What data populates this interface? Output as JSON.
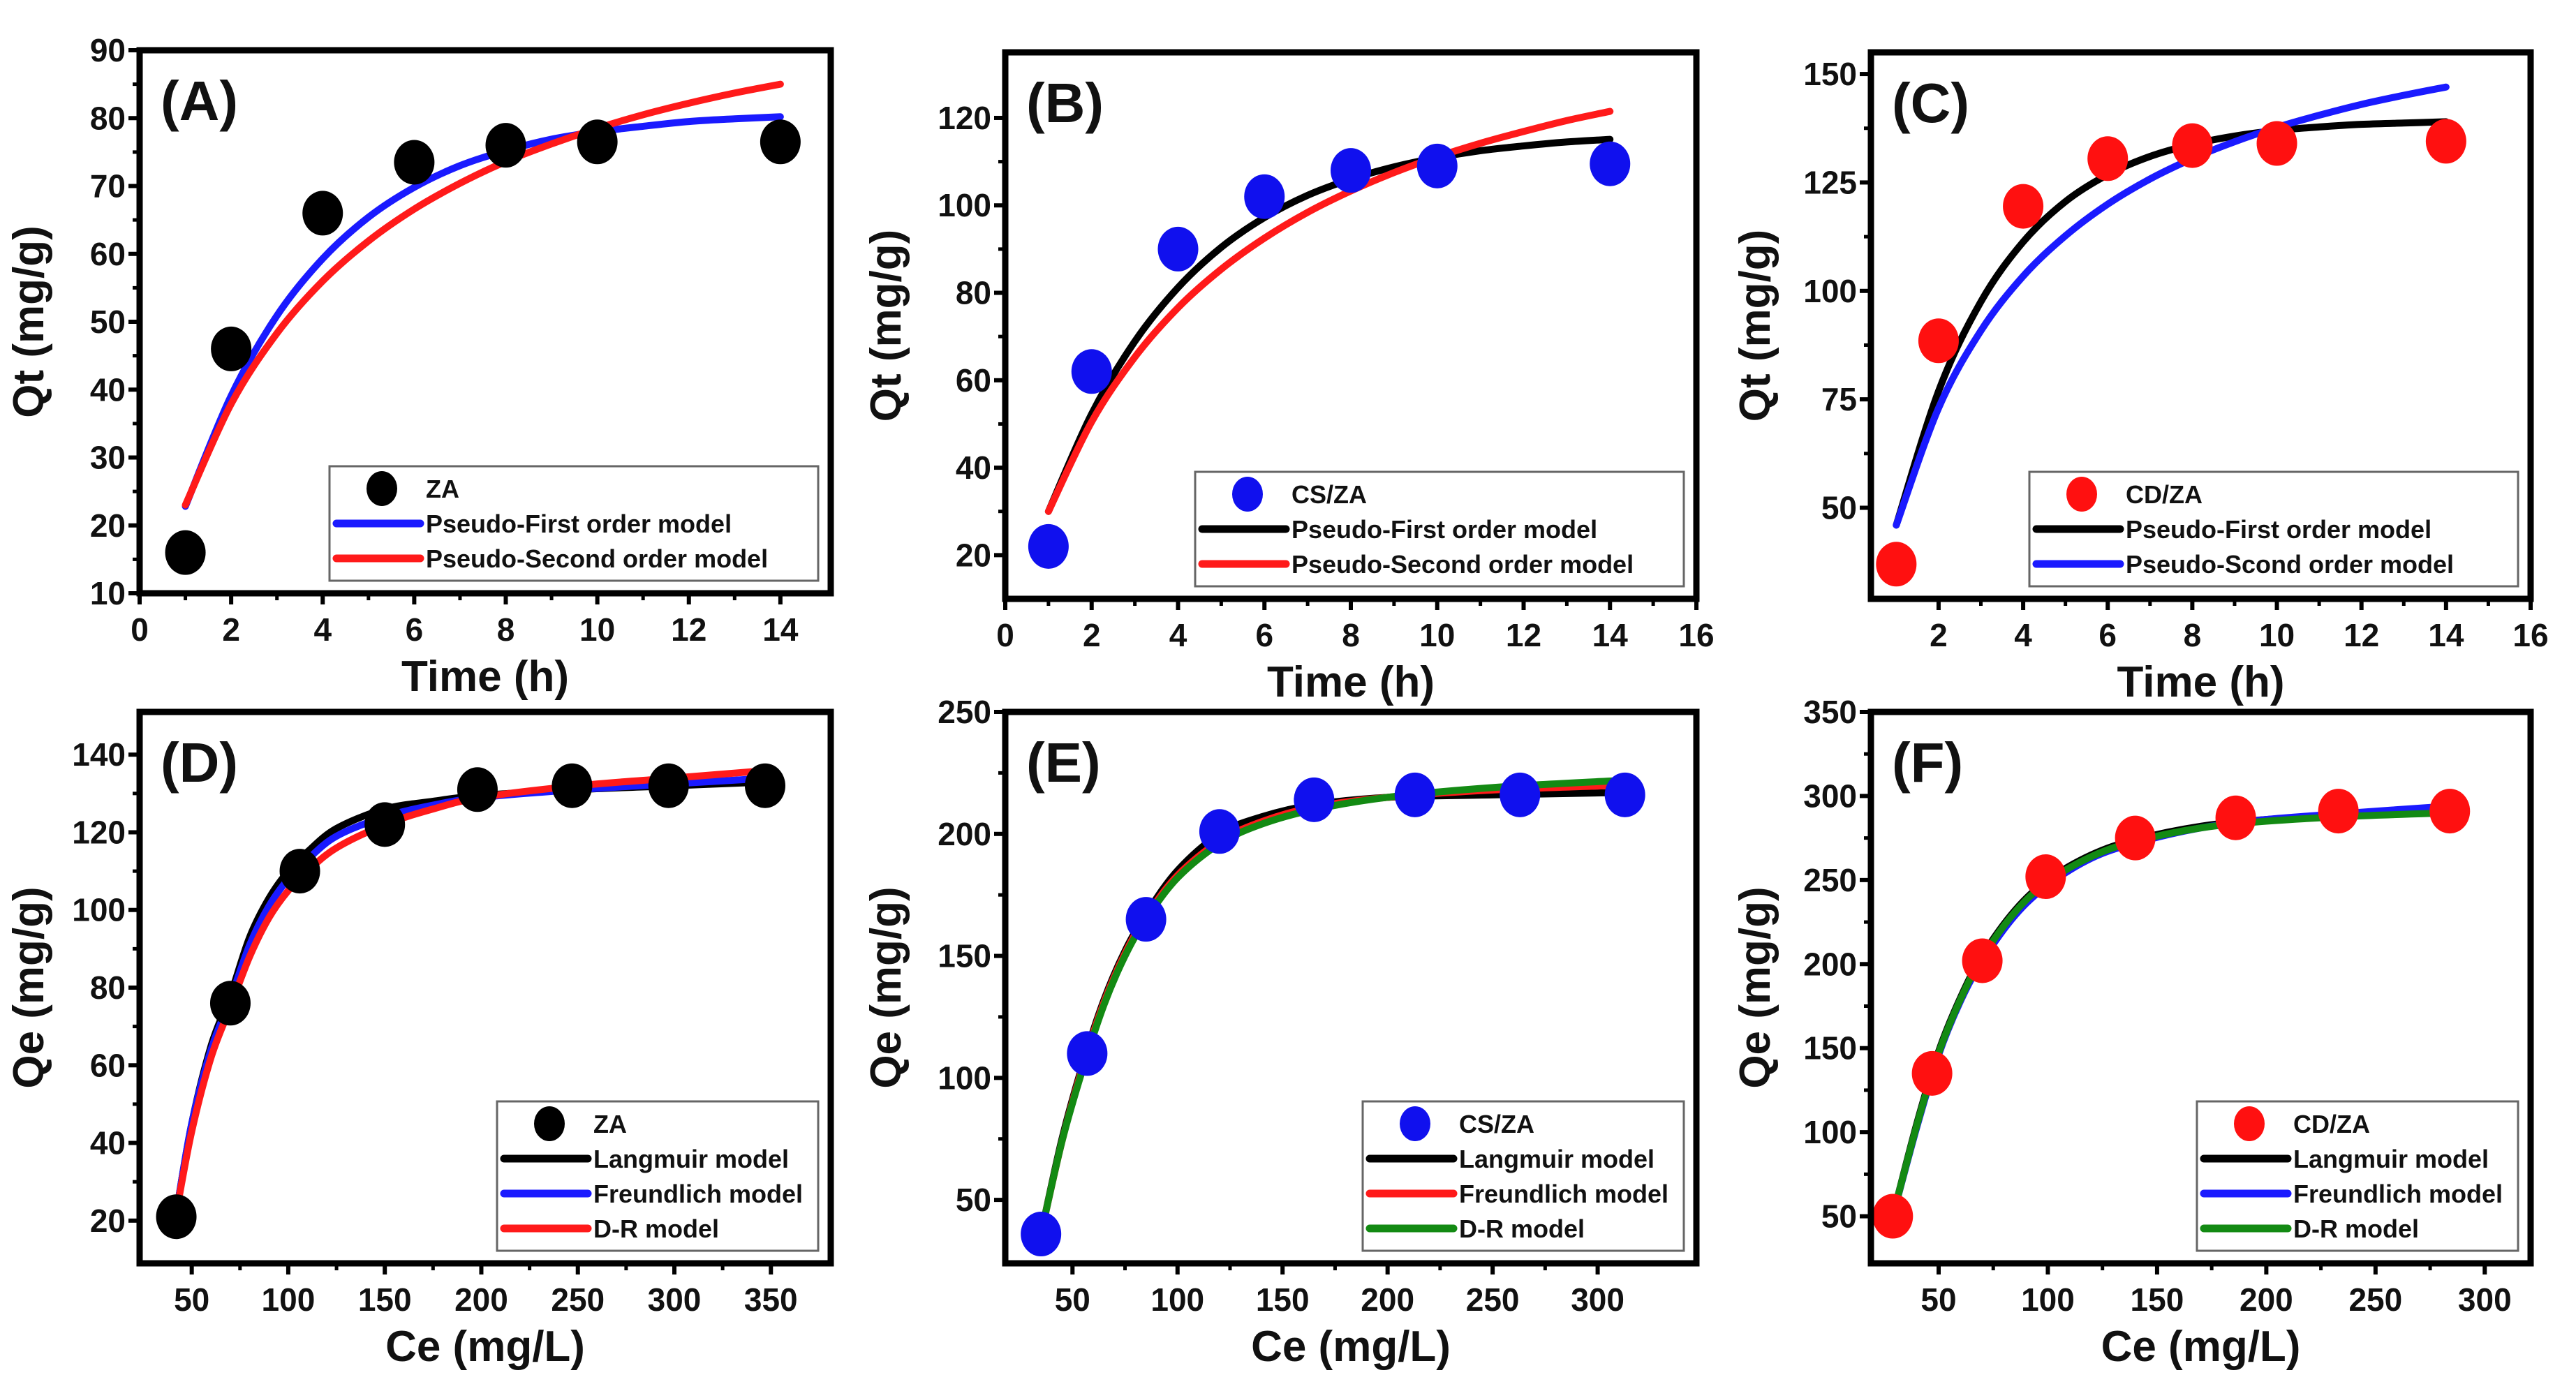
{
  "chart_data": [
    {
      "type": "scatter",
      "panel_label": "(A)",
      "xlabel": "Time (h)",
      "ylabel": "Qt (mg/g)",
      "xlim": [
        0,
        15.1
      ],
      "ylim": [
        10,
        90
      ],
      "xticks": [
        "0",
        "2",
        "4",
        "6",
        "8",
        "10",
        "12",
        "14"
      ],
      "xtick_values": [
        0,
        2,
        4,
        6,
        8,
        10,
        12,
        14
      ],
      "yticks": [
        "10",
        "20",
        "30",
        "40",
        "50",
        "60",
        "70",
        "80",
        "90"
      ],
      "ytick_values": [
        10,
        20,
        30,
        40,
        50,
        60,
        70,
        80,
        90
      ],
      "legend_position": "bottom-right",
      "series": [
        {
          "name": "ZA",
          "kind": "points",
          "color": "#000000",
          "x": [
            1,
            2,
            4,
            6,
            8,
            10,
            14
          ],
          "y": [
            16,
            46,
            66,
            73.5,
            76,
            76.5,
            76.5
          ]
        },
        {
          "name": "Pseudo-First order model",
          "kind": "line",
          "color": "#1a1aff",
          "x": [
            1,
            2,
            3,
            4,
            5,
            6,
            7,
            8,
            9,
            10,
            11,
            12,
            13,
            14
          ],
          "y": [
            22.8,
            39.1,
            50.9,
            59.3,
            65.4,
            69.8,
            73.0,
            75.2,
            76.9,
            78.0,
            78.8,
            79.5,
            79.9,
            80.2
          ]
        },
        {
          "name": "Pseudo-Second order model",
          "kind": "line",
          "color": "#ff1a1a",
          "x": [
            1,
            2,
            3,
            4,
            5,
            6,
            7,
            8,
            9,
            10,
            11,
            12,
            13,
            14
          ],
          "y": [
            23.0,
            37.9,
            48.3,
            56.0,
            61.9,
            66.6,
            70.4,
            73.6,
            76.2,
            78.5,
            80.5,
            82.2,
            83.7,
            85.0
          ]
        }
      ]
    },
    {
      "type": "scatter",
      "panel_label": "(B)",
      "xlabel": "Time (h)",
      "ylabel": "Qt (mg/g)",
      "xlim": [
        0,
        16
      ],
      "ylim": [
        10,
        135
      ],
      "xticks": [
        "0",
        "2",
        "4",
        "6",
        "8",
        "10",
        "12",
        "14",
        "16"
      ],
      "xtick_values": [
        0,
        2,
        4,
        6,
        8,
        10,
        12,
        14,
        16
      ],
      "yticks": [
        "20",
        "40",
        "60",
        "80",
        "100",
        "120"
      ],
      "ytick_values": [
        20,
        40,
        60,
        80,
        100,
        120
      ],
      "legend_position": "bottom-right",
      "series": [
        {
          "name": "CS/ZA",
          "kind": "points",
          "color": "#1010ee",
          "x": [
            1,
            2,
            4,
            6,
            8,
            10,
            14
          ],
          "y": [
            22,
            62,
            90,
            102,
            108,
            109,
            109.5
          ]
        },
        {
          "name": "Pseudo-First order model",
          "kind": "line",
          "color": "#000000",
          "x": [
            1,
            2,
            3,
            4,
            5,
            6,
            7,
            8,
            9,
            10,
            11,
            12,
            13,
            14
          ],
          "y": [
            30.0,
            52.3,
            68.9,
            81.2,
            90.4,
            97.2,
            102.3,
            106.0,
            108.8,
            110.9,
            112.5,
            113.6,
            114.5,
            115.1
          ]
        },
        {
          "name": "Pseudo-Second order model",
          "kind": "line",
          "color": "#ff1a1a",
          "x": [
            1,
            2,
            3,
            4,
            5,
            6,
            7,
            8,
            9,
            10,
            11,
            12,
            13,
            14
          ],
          "y": [
            30.0,
            50.5,
            65.3,
            76.6,
            85.4,
            92.5,
            98.4,
            103.3,
            107.5,
            111.1,
            114.2,
            116.9,
            119.4,
            121.5
          ]
        }
      ]
    },
    {
      "type": "scatter",
      "panel_label": "(C)",
      "xlabel": "Time (h)",
      "ylabel": "Qt (mg/g)",
      "xlim": [
        0.4,
        16
      ],
      "ylim": [
        29,
        155
      ],
      "xticks": [
        "2",
        "4",
        "6",
        "8",
        "10",
        "12",
        "14",
        "16"
      ],
      "xtick_values": [
        2,
        4,
        6,
        8,
        10,
        12,
        14,
        16
      ],
      "yticks": [
        "50",
        "75",
        "100",
        "125",
        "150"
      ],
      "ytick_values": [
        50,
        75,
        100,
        125,
        150
      ],
      "legend_position": "bottom-right",
      "series": [
        {
          "name": "CD/ZA",
          "kind": "points",
          "color": "#ff1010",
          "x": [
            1,
            2,
            4,
            6,
            8,
            10,
            14
          ],
          "y": [
            37,
            88.5,
            119.5,
            130.5,
            133.5,
            134,
            134.5
          ]
        },
        {
          "name": "Pseudo-First order model",
          "kind": "line",
          "color": "#000000",
          "x": [
            1,
            2,
            3,
            4,
            5,
            6,
            7,
            8,
            9,
            10,
            11,
            12,
            13,
            14
          ],
          "y": [
            46.0,
            76.9,
            97.5,
            111.3,
            120.6,
            126.8,
            131.0,
            133.8,
            135.7,
            137.0,
            137.8,
            138.4,
            138.7,
            139.0
          ]
        },
        {
          "name": "Pseudo-Scond order model",
          "kind": "line",
          "color": "#1a1aff",
          "x": [
            1,
            2,
            3,
            4,
            5,
            6,
            7,
            8,
            9,
            10,
            11,
            12,
            13,
            14
          ],
          "y": [
            46.0,
            73.0,
            90.8,
            103.4,
            112.7,
            120.0,
            125.8,
            130.5,
            134.4,
            137.7,
            140.5,
            143.0,
            145.1,
            147.0
          ]
        }
      ]
    },
    {
      "type": "scatter",
      "panel_label": "(D)",
      "xlabel": "Ce (mg/L)",
      "ylabel": "Qe (mg/g)",
      "xlim": [
        23,
        381
      ],
      "ylim": [
        9,
        151
      ],
      "xticks": [
        "50",
        "100",
        "150",
        "200",
        "250",
        "300",
        "350"
      ],
      "xtick_values": [
        50,
        100,
        150,
        200,
        250,
        300,
        350
      ],
      "yticks": [
        "20",
        "40",
        "60",
        "80",
        "100",
        "120",
        "140"
      ],
      "ytick_values": [
        20,
        40,
        60,
        80,
        100,
        120,
        140
      ],
      "legend_position": "bottom-right",
      "series": [
        {
          "name": "ZA",
          "kind": "points",
          "color": "#000000",
          "x": [
            42,
            70,
            106,
            150,
            198,
            247,
            297,
            347
          ],
          "y": [
            21,
            76,
            110,
            122,
            131,
            132,
            132,
            132
          ]
        },
        {
          "name": "Langmuir model",
          "kind": "line",
          "color": "#000000",
          "x": [
            42,
            50,
            60,
            70,
            80,
            90,
            100,
            110,
            125,
            150,
            175,
            200,
            250,
            300,
            350
          ],
          "y": [
            22,
            45,
            65,
            78,
            93,
            103,
            110,
            115,
            121,
            126,
            128,
            129.5,
            131,
            132,
            133
          ]
        },
        {
          "name": "Freundlich model",
          "kind": "line",
          "color": "#1a1aff",
          "x": [
            42,
            50,
            60,
            70,
            80,
            90,
            100,
            110,
            125,
            150,
            175,
            200,
            250,
            300,
            350
          ],
          "y": [
            22,
            45,
            64,
            77,
            91,
            101,
            108,
            113,
            119,
            124,
            127,
            129,
            131,
            132.5,
            134
          ]
        },
        {
          "name": "D-R model",
          "kind": "line",
          "color": "#ff1a1a",
          "x": [
            42,
            50,
            60,
            70,
            80,
            90,
            100,
            110,
            125,
            150,
            175,
            200,
            250,
            300,
            350
          ],
          "y": [
            22,
            43,
            62,
            75,
            88,
            98,
            105,
            110,
            116,
            122,
            126,
            129,
            132,
            134,
            136
          ]
        }
      ]
    },
    {
      "type": "scatter",
      "panel_label": "(E)",
      "xlabel": "Ce (mg/L)",
      "ylabel": "Qe (mg/g)",
      "xlim": [
        18,
        347
      ],
      "ylim": [
        24,
        250
      ],
      "xticks": [
        "50",
        "100",
        "150",
        "200",
        "250",
        "300"
      ],
      "xtick_values": [
        50,
        100,
        150,
        200,
        250,
        300
      ],
      "yticks": [
        "50",
        "100",
        "150",
        "200",
        "250"
      ],
      "ytick_values": [
        50,
        100,
        150,
        200,
        250
      ],
      "legend_position": "bottom-right",
      "series": [
        {
          "name": "CS/ZA",
          "kind": "points",
          "color": "#1010ee",
          "x": [
            35,
            57,
            85,
            120,
            165,
            213,
            263,
            313
          ],
          "y": [
            36,
            110,
            165,
            201,
            214,
            216,
            216,
            216
          ]
        },
        {
          "name": "Langmuir model",
          "kind": "line",
          "color": "#000000",
          "x": [
            35,
            45,
            55,
            65,
            75,
            85,
            100,
            120,
            140,
            165,
            200,
            250,
            313
          ],
          "y": [
            36,
            75,
            106,
            132,
            152,
            167,
            185,
            200,
            207,
            212,
            215,
            216,
            217
          ]
        },
        {
          "name": "Freundlich model",
          "kind": "line",
          "color": "#ff1a1a",
          "x": [
            35,
            45,
            55,
            65,
            75,
            85,
            100,
            120,
            140,
            165,
            200,
            250,
            313
          ],
          "y": [
            36,
            74,
            105,
            131,
            151,
            166,
            183,
            197,
            205,
            211,
            215,
            218,
            220
          ]
        },
        {
          "name": "D-R model",
          "kind": "line",
          "color": "#138a13",
          "x": [
            35,
            45,
            55,
            65,
            75,
            85,
            100,
            120,
            140,
            165,
            200,
            250,
            313
          ],
          "y": [
            36,
            74,
            104,
            130,
            150,
            165,
            182,
            196,
            204,
            210,
            215,
            219,
            222
          ]
        }
      ]
    },
    {
      "type": "scatter",
      "panel_label": "(F)",
      "xlabel": "Ce (mg/L)",
      "ylabel": "Qe (mg/g)",
      "xlim": [
        19,
        321
      ],
      "ylim": [
        22,
        350
      ],
      "xticks": [
        "50",
        "100",
        "150",
        "200",
        "250",
        "300"
      ],
      "xtick_values": [
        50,
        100,
        150,
        200,
        250,
        300
      ],
      "yticks": [
        "50",
        "100",
        "150",
        "200",
        "250",
        "300",
        "350"
      ],
      "ytick_values": [
        50,
        100,
        150,
        200,
        250,
        300,
        350
      ],
      "legend_position": "bottom-right",
      "series": [
        {
          "name": "CD/ZA",
          "kind": "points",
          "color": "#ff1010",
          "x": [
            29,
            47,
            70,
            99,
            140,
            186,
            233,
            284
          ],
          "y": [
            50,
            135,
            202,
            252,
            275,
            287,
            291,
            291
          ]
        },
        {
          "name": "Langmuir model",
          "kind": "line",
          "color": "#000000",
          "x": [
            29,
            40,
            50,
            60,
            70,
            85,
            100,
            120,
            140,
            170,
            200,
            240,
            284
          ],
          "y": [
            50,
            105,
            148,
            180,
            205,
            232,
            250,
            265,
            274,
            282,
            286,
            289,
            290
          ]
        },
        {
          "name": "Freundlich model",
          "kind": "line",
          "color": "#1a1aff",
          "x": [
            29,
            40,
            50,
            60,
            70,
            85,
            100,
            120,
            140,
            170,
            200,
            240,
            284
          ],
          "y": [
            50,
            103,
            146,
            178,
            202,
            229,
            247,
            263,
            272,
            281,
            286,
            290,
            294
          ]
        },
        {
          "name": "D-R model",
          "kind": "line",
          "color": "#138a13",
          "x": [
            29,
            40,
            50,
            60,
            70,
            85,
            100,
            120,
            140,
            170,
            200,
            240,
            284
          ],
          "y": [
            50,
            104,
            147,
            179,
            204,
            231,
            249,
            264,
            273,
            281,
            285,
            288,
            290
          ]
        }
      ]
    }
  ]
}
